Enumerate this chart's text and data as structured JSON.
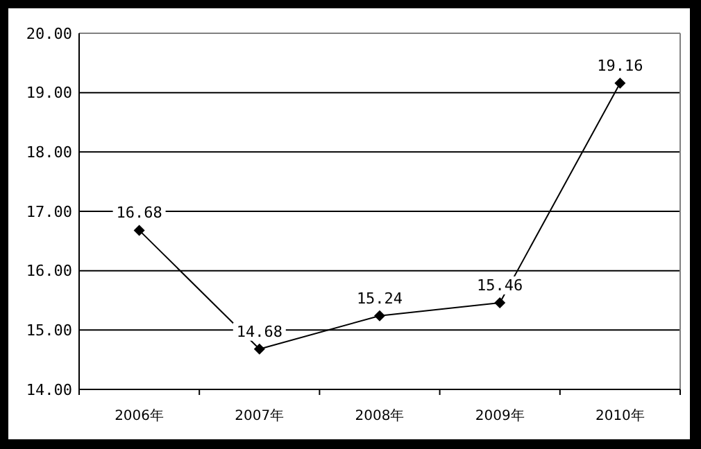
{
  "chart_data": {
    "type": "line",
    "categories": [
      "2006年",
      "2007年",
      "2008年",
      "2009年",
      "2010年"
    ],
    "series": [
      {
        "color": "#000000",
        "values": [
          16.68,
          14.68,
          15.24,
          15.46,
          19.16
        ]
      }
    ],
    "ylim": [
      14,
      20
    ],
    "yticks": [
      {
        "value": 14,
        "label": "14.00"
      },
      {
        "value": 15,
        "label": "15.00"
      },
      {
        "value": 16,
        "label": "16.00"
      },
      {
        "value": 17,
        "label": "17.00"
      },
      {
        "value": 18,
        "label": "18.00"
      },
      {
        "value": 19,
        "label": "19.00"
      },
      {
        "value": 20,
        "label": "20.00"
      }
    ],
    "grid": "y",
    "marker": "diamond",
    "data_labels": true
  }
}
